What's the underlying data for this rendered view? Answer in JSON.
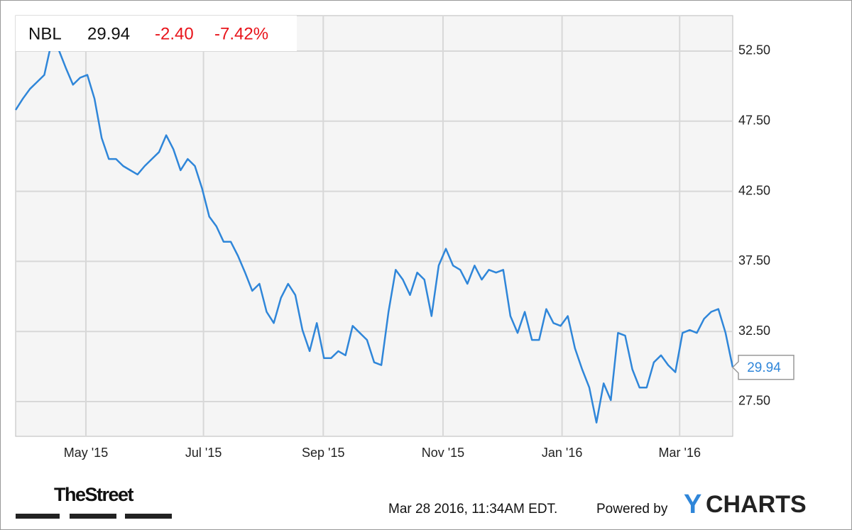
{
  "chart_data": {
    "type": "line",
    "header": {
      "symbol": "NBL",
      "price": "29.94",
      "change": "-2.40",
      "change_percent": "-7.42%",
      "change_color": "#e8141b"
    },
    "series": [
      {
        "name": "NBL",
        "color": "#2f86d9",
        "values": [
          48.3,
          49.1,
          49.8,
          50.3,
          50.8,
          53.1,
          52.6,
          51.3,
          50.1,
          50.6,
          50.8,
          49.1,
          46.3,
          44.8,
          44.8,
          44.3,
          44.0,
          43.7,
          44.3,
          44.8,
          45.3,
          46.5,
          45.5,
          44.0,
          44.8,
          44.3,
          42.7,
          40.7,
          40.0,
          38.9,
          38.9,
          37.9,
          36.7,
          35.4,
          35.9,
          33.9,
          33.1,
          34.9,
          35.9,
          35.1,
          32.6,
          31.1,
          33.1,
          30.6,
          30.6,
          31.1,
          30.8,
          32.9,
          32.4,
          31.9,
          30.3,
          30.1,
          33.9,
          36.9,
          36.2,
          35.1,
          36.7,
          36.2,
          33.6,
          37.2,
          38.4,
          37.2,
          36.9,
          35.9,
          37.2,
          36.2,
          36.9,
          36.7,
          36.9,
          33.6,
          32.4,
          33.9,
          31.9,
          31.9,
          34.1,
          33.1,
          32.9,
          33.6,
          31.3,
          29.8,
          28.5,
          26.0,
          28.8,
          27.6,
          32.4,
          32.2,
          29.8,
          28.5,
          28.5,
          30.3,
          30.8,
          30.1,
          29.6,
          32.4,
          32.6,
          32.4,
          33.4,
          33.9,
          34.1,
          32.4,
          29.94
        ]
      }
    ],
    "xlim": [
      0,
      100
    ],
    "xticks": [
      {
        "value": 9.8,
        "label": "May '15"
      },
      {
        "value": 26.2,
        "label": "Jul '15"
      },
      {
        "value": 42.9,
        "label": "Sep '15"
      },
      {
        "value": 59.6,
        "label": "Nov '15"
      },
      {
        "value": 76.2,
        "label": "Jan '16"
      },
      {
        "value": 92.6,
        "label": "Mar '16"
      }
    ],
    "ylim": [
      25.02,
      55.03
    ],
    "yticks": [
      {
        "value": 27.5,
        "label": "27.50"
      },
      {
        "value": 32.5,
        "label": "32.50"
      },
      {
        "value": 37.5,
        "label": "37.50"
      },
      {
        "value": 42.5,
        "label": "42.50"
      },
      {
        "value": 47.5,
        "label": "47.50"
      },
      {
        "value": 52.5,
        "label": "52.50"
      }
    ],
    "grid": true,
    "footer": {
      "source_logo": "TheStreet",
      "timestamp": "Mar 28 2016, 11:34AM EDT.",
      "powered_by": "Powered by",
      "brand_y": "Y",
      "brand_rest": "CHARTS"
    }
  }
}
